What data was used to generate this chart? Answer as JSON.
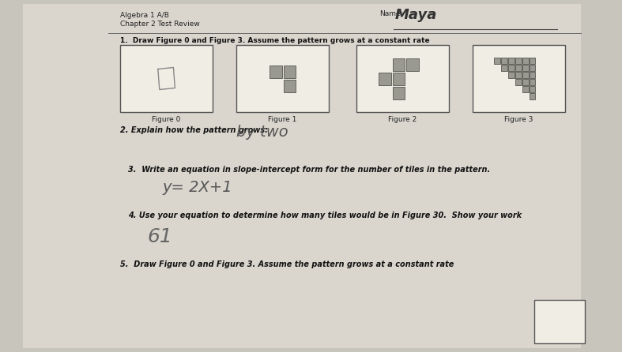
{
  "bg_color": "#c8c5bc",
  "paper_color": "#dedad2",
  "title_line1": "Algebra 1 A/B",
  "title_line2": "Chapter 2 Test Review",
  "name_label": "Name:",
  "name_value": "Maya",
  "q1_text": "1.  Draw Figure 0 and Figure 3. Assume the pattern grows at a constant rate",
  "figure_labels": [
    "Figure 0",
    "Figure 1",
    "Figure 2",
    "Figure 3"
  ],
  "q2_text": "2. Explain how the pattern grows:",
  "q2_answer": "by two",
  "q3_text": "3.  Write an equation in slope-intercept form for the number of tiles in the pattern.",
  "q3_answer": "y= 2X+1",
  "q4_text": "4. Use your equation to determine how many tiles would be in Figure 30.  Show your work",
  "q4_answer": "61",
  "q5_text": "5.  Draw Figure 0 and Figure 3. Assume the pattern grows at a constant rate",
  "tile_color": "#999990",
  "tile_edge": "#555550",
  "white": "#f0ede5"
}
